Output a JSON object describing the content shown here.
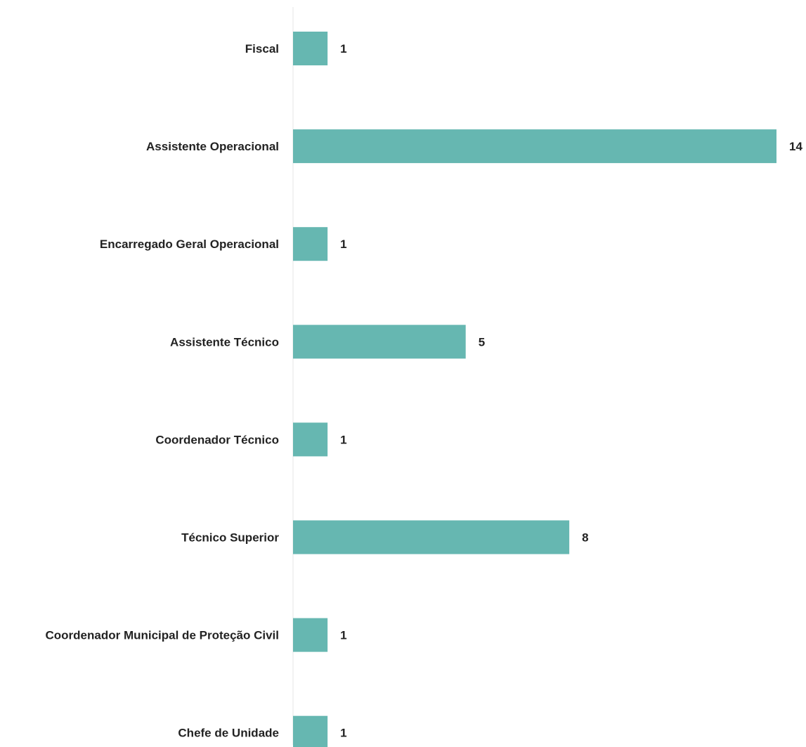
{
  "chart_data": {
    "type": "bar",
    "orientation": "horizontal",
    "categories": [
      "Fiscal",
      "Assistente Operacional",
      "Encarregado Geral Operacional",
      "Assistente Técnico",
      "Coordenador Técnico",
      "Técnico Superior",
      "Coordenador Municipal de Proteção Civil",
      "Chefe de Unidade"
    ],
    "values": [
      1,
      14,
      1,
      5,
      1,
      8,
      1,
      1
    ],
    "xlim": [
      0,
      14
    ],
    "grid": false,
    "legend": "none",
    "data_labels": true,
    "colors": {
      "bar": "#66b7b1",
      "axis": "#e6e6e6",
      "text": "#222222"
    }
  }
}
